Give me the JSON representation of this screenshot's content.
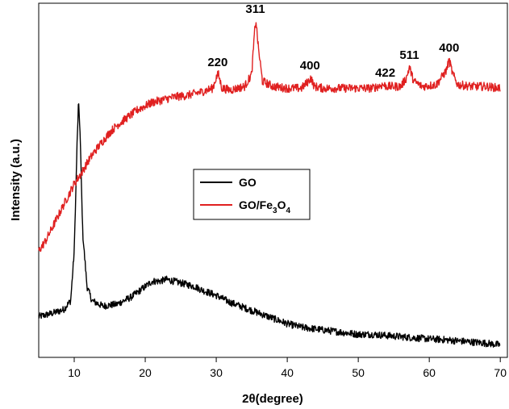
{
  "chart_data": {
    "type": "line",
    "title": "",
    "xlabel_parts": [
      "2",
      "θ",
      "(degree)"
    ],
    "ylabel": "Intensity (a.u.)",
    "xlim": [
      5,
      71
    ],
    "ylim": [
      0,
      100
    ],
    "x_ticks": [
      10,
      20,
      30,
      40,
      50,
      60,
      70
    ],
    "y_ticks_labeled": false,
    "legend_placement": "center",
    "series": [
      {
        "name": "GO",
        "legend_parts": [
          "GO"
        ],
        "color": "#000000",
        "points": [
          [
            5,
            11.5
          ],
          [
            7,
            12.5
          ],
          [
            8.5,
            13.5
          ],
          [
            9.5,
            16
          ],
          [
            10,
            30
          ],
          [
            10.4,
            60
          ],
          [
            10.6,
            72
          ],
          [
            10.8,
            65
          ],
          [
            11.2,
            35
          ],
          [
            11.8,
            20
          ],
          [
            12.5,
            16
          ],
          [
            14,
            14.5
          ],
          [
            16,
            15
          ],
          [
            18,
            17
          ],
          [
            20,
            20
          ],
          [
            21,
            21.5
          ],
          [
            22,
            21.5
          ],
          [
            23,
            22
          ],
          [
            24,
            21.5
          ],
          [
            25,
            21
          ],
          [
            26,
            20.5
          ],
          [
            27,
            20
          ],
          [
            28,
            19
          ],
          [
            30,
            17.5
          ],
          [
            32,
            15.5
          ],
          [
            34,
            14
          ],
          [
            36,
            12.5
          ],
          [
            38,
            11
          ],
          [
            40,
            9.5
          ],
          [
            42,
            8.5
          ],
          [
            44,
            8
          ],
          [
            46,
            7.5
          ],
          [
            48,
            7
          ],
          [
            50,
            6.5
          ],
          [
            52,
            6.5
          ],
          [
            55,
            6
          ],
          [
            58,
            5.5
          ],
          [
            60,
            5.2
          ],
          [
            62,
            5
          ],
          [
            65,
            4.5
          ],
          [
            68,
            4
          ],
          [
            70,
            3.5
          ]
        ],
        "noise": 1.0
      },
      {
        "name": "GO/Fe3O4",
        "legend_parts": [
          "GO/Fe",
          "3",
          "O",
          "4"
        ],
        "color": "#e02020",
        "points": [
          [
            5,
            30
          ],
          [
            6,
            33
          ],
          [
            7,
            37
          ],
          [
            8,
            41
          ],
          [
            9,
            45
          ],
          [
            10,
            49
          ],
          [
            11,
            52
          ],
          [
            12,
            55.5
          ],
          [
            13,
            58.5
          ],
          [
            14,
            61
          ],
          [
            15,
            63.5
          ],
          [
            16,
            65.5
          ],
          [
            17,
            67
          ],
          [
            18,
            68.5
          ],
          [
            19,
            70
          ],
          [
            20,
            71
          ],
          [
            21,
            72
          ],
          [
            22,
            72.5
          ],
          [
            24,
            73.5
          ],
          [
            26,
            74
          ],
          [
            28,
            75
          ],
          [
            29.5,
            76
          ],
          [
            30,
            79
          ],
          [
            30.3,
            80
          ],
          [
            30.8,
            76
          ],
          [
            32,
            75.5
          ],
          [
            34,
            76.5
          ],
          [
            35,
            80
          ],
          [
            35.4,
            92
          ],
          [
            35.6,
            95
          ],
          [
            35.9,
            88
          ],
          [
            36.5,
            78
          ],
          [
            38,
            76.5
          ],
          [
            40,
            76
          ],
          [
            42,
            76
          ],
          [
            43,
            78
          ],
          [
            43.3,
            79
          ],
          [
            43.8,
            76.5
          ],
          [
            45,
            76
          ],
          [
            48,
            76
          ],
          [
            50,
            76
          ],
          [
            52,
            76
          ],
          [
            53.5,
            77
          ],
          [
            54,
            76.5
          ],
          [
            56,
            76.5
          ],
          [
            56.8,
            79
          ],
          [
            57.2,
            82
          ],
          [
            57.8,
            78
          ],
          [
            59,
            76.5
          ],
          [
            61,
            77
          ],
          [
            62.4,
            81
          ],
          [
            62.8,
            84
          ],
          [
            63.3,
            80
          ],
          [
            64,
            77
          ],
          [
            66,
            76.5
          ],
          [
            68,
            76.5
          ],
          [
            70,
            76
          ]
        ],
        "noise": 1.2
      }
    ],
    "annotations": [
      {
        "text": "220",
        "x": 30.2,
        "y": 80
      },
      {
        "text": "311",
        "x": 35.5,
        "y": 95
      },
      {
        "text": "400",
        "x": 43.2,
        "y": 79
      },
      {
        "text": "422",
        "x": 53.8,
        "y": 77
      },
      {
        "text": "511",
        "x": 57.2,
        "y": 82
      },
      {
        "text": "400",
        "x": 62.8,
        "y": 84
      }
    ]
  }
}
